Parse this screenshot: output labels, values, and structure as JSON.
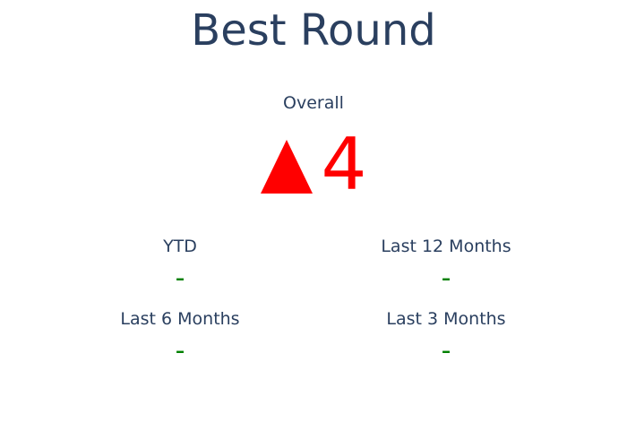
{
  "chart_data": {
    "type": "indicator",
    "title": "Best Round",
    "overall": {
      "label": "Overall",
      "value": 4,
      "delta_direction": "up",
      "arrow_icon": "triangle-up-icon",
      "color": "#ff0000"
    },
    "periods": [
      {
        "label": "YTD",
        "value": "-",
        "color": "#008000"
      },
      {
        "label": "Last 12 Months",
        "value": "-",
        "color": "#008000"
      },
      {
        "label": "Last 6 Months",
        "value": "-",
        "color": "#008000"
      },
      {
        "label": "Last 3 Months",
        "value": "-",
        "color": "#008000"
      }
    ]
  }
}
